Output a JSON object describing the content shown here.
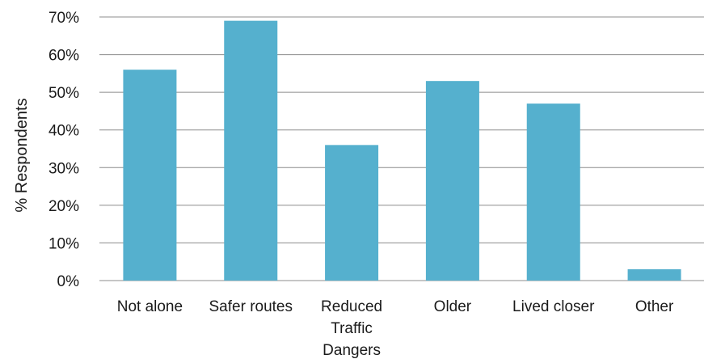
{
  "chart_data": {
    "type": "bar",
    "title": "",
    "xlabel": "",
    "ylabel": "% Respondents",
    "categories": [
      "Not alone",
      "Safer routes",
      "Reduced Traffic Dangers",
      "Older",
      "Lived closer",
      "Other"
    ],
    "category_lines": [
      [
        "Not alone"
      ],
      [
        "Safer routes"
      ],
      [
        "Reduced",
        "Traffic",
        "Dangers"
      ],
      [
        "Older"
      ],
      [
        "Lived closer"
      ],
      [
        "Other"
      ]
    ],
    "values": [
      56,
      69,
      36,
      53,
      47,
      3
    ],
    "ylim": [
      0,
      70
    ],
    "yticks": [
      0,
      10,
      20,
      30,
      40,
      50,
      60,
      70
    ],
    "ytick_labels": [
      "0%",
      "10%",
      "20%",
      "30%",
      "40%",
      "50%",
      "60%",
      "70%"
    ],
    "grid": true,
    "legend": "none",
    "bar_color": "#55B0CE"
  }
}
